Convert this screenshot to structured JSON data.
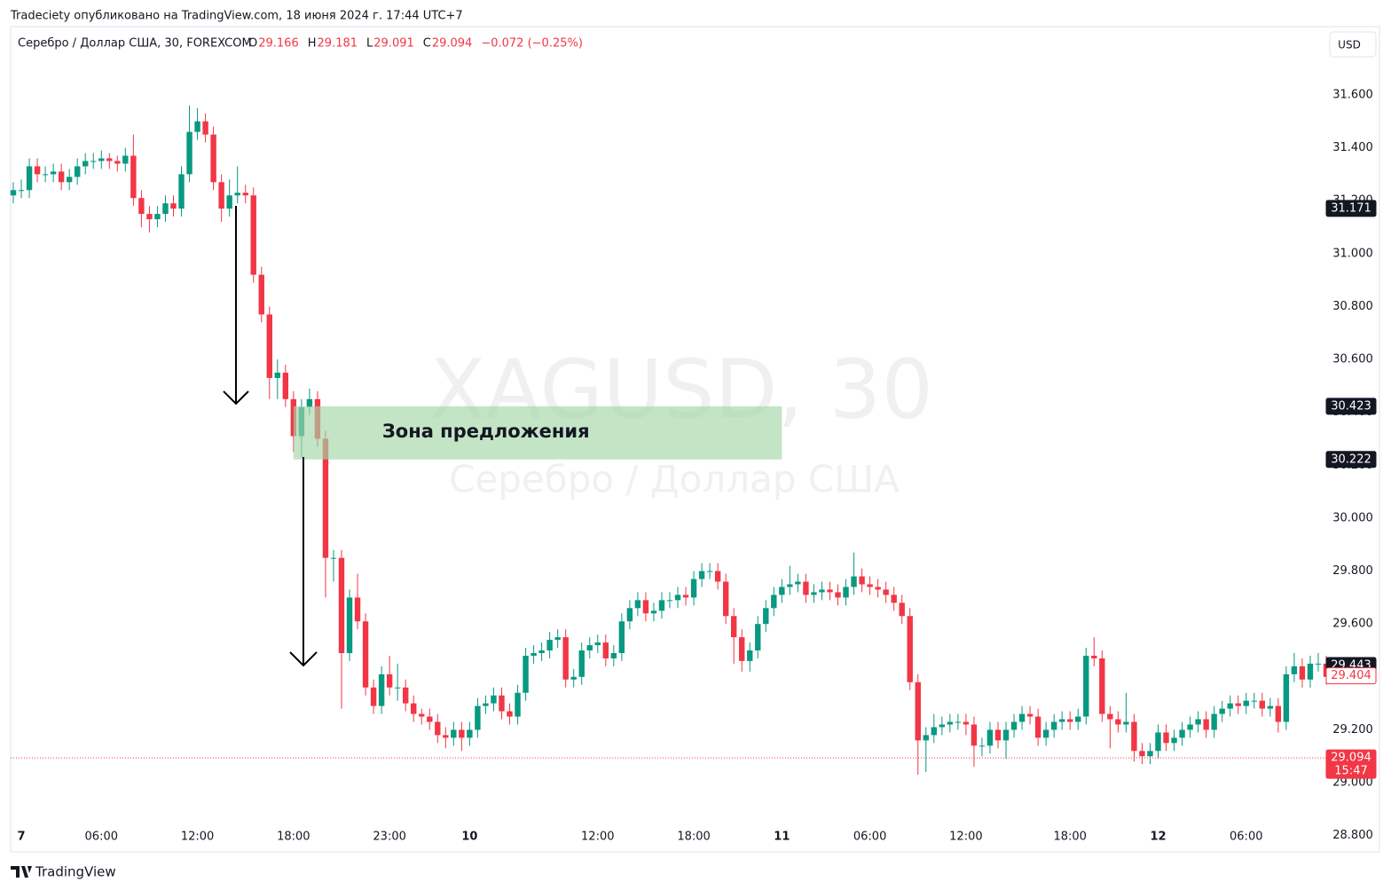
{
  "header": {
    "title": "Tradeciety опубликовано на TradingView.com, 18 июня 2024 г. 17:44 UTC+7",
    "symbol": "Серебро / Доллар США, 30, FOREXCOM",
    "ohlc": [
      {
        "label": "O",
        "value": 29.166
      },
      {
        "label": "H",
        "value": 29.181
      },
      {
        "label": "L",
        "value": 29.091
      },
      {
        "label": "C",
        "value": 29.094
      }
    ],
    "change": "−0.072 (−0.25%)",
    "currency": "USD",
    "brand": "TradingView"
  },
  "chart_data": {
    "type": "candlestick",
    "watermark": {
      "symbol": "XAGUSD, 30",
      "name": "Серебро / Доллар США"
    },
    "categories": [
      null,
      "7",
      null,
      null,
      null,
      null,
      null,
      null,
      null,
      null,
      null,
      "06:00",
      null,
      null,
      null,
      null,
      null,
      null,
      null,
      null,
      null,
      null,
      null,
      "12:00",
      null,
      null,
      null,
      null,
      null,
      null,
      null,
      null,
      null,
      null,
      null,
      "18:00",
      null,
      null,
      null,
      null,
      null,
      null,
      null,
      null,
      null,
      null,
      null,
      "23:00",
      null,
      null,
      null,
      null,
      null,
      null,
      null,
      null,
      null,
      "10",
      null,
      null,
      null,
      null,
      null,
      null,
      null,
      null,
      null,
      null,
      null,
      null,
      null,
      null,
      null,
      "12:00",
      null,
      null,
      null,
      null,
      null,
      null,
      null,
      null,
      null,
      null,
      null,
      "18:00",
      null,
      null,
      null,
      null,
      null,
      null,
      null,
      null,
      null,
      null,
      "11",
      null,
      null,
      null,
      null,
      null,
      null,
      null,
      null,
      null,
      null,
      "06:00",
      null,
      null,
      null,
      null,
      null,
      null,
      null,
      null,
      null,
      null,
      null,
      "12:00",
      null,
      null,
      null,
      null,
      null,
      null,
      null,
      null,
      null,
      null,
      null,
      null,
      "18:00",
      null,
      null,
      null,
      null,
      null,
      null,
      null,
      null,
      null,
      null,
      "12",
      null,
      null,
      null,
      null,
      null,
      null,
      null,
      null,
      null,
      null,
      "06:00",
      null,
      null,
      null,
      null,
      null,
      null,
      null,
      null,
      null,
      null
    ],
    "series": [
      {
        "up_color": "#089981",
        "down_color": "#f23645",
        "open": [
          31.22,
          31.24,
          31.24,
          31.33,
          31.3,
          31.3,
          31.31,
          31.27,
          31.29,
          31.33,
          31.35,
          31.35,
          31.36,
          31.35,
          31.34,
          31.37,
          31.21,
          31.15,
          31.13,
          31.15,
          31.19,
          31.17,
          31.3,
          31.46,
          31.5,
          31.45,
          31.27,
          31.17,
          31.22,
          31.23,
          31.22,
          30.92,
          30.77,
          30.53,
          30.55,
          30.45,
          30.31,
          30.42,
          30.45,
          30.3,
          29.85,
          29.85,
          29.49,
          29.7,
          29.61,
          29.36,
          29.29,
          29.41,
          29.36,
          29.36,
          29.3,
          29.26,
          29.25,
          29.23,
          29.18,
          29.17,
          29.2,
          29.17,
          29.2,
          29.29,
          29.3,
          29.33,
          29.27,
          29.25,
          29.34,
          29.48,
          29.49,
          29.5,
          29.54,
          29.55,
          29.39,
          29.4,
          29.5,
          29.52,
          29.53,
          29.47,
          29.49,
          29.61,
          29.66,
          29.69,
          29.64,
          29.65,
          29.69,
          29.69,
          29.71,
          29.7,
          29.77,
          29.8,
          29.8,
          29.76,
          29.63,
          29.55,
          29.46,
          29.5,
          29.6,
          29.66,
          29.71,
          29.74,
          29.75,
          29.76,
          29.71,
          29.72,
          29.73,
          29.72,
          29.7,
          29.74,
          29.78,
          29.75,
          29.74,
          29.73,
          29.71,
          29.68,
          29.63,
          29.38,
          29.16,
          29.18,
          29.21,
          29.22,
          29.23,
          29.23,
          29.22,
          29.14,
          29.14,
          29.2,
          29.16,
          29.2,
          29.23,
          29.26,
          29.25,
          29.17,
          29.2,
          29.23,
          29.24,
          29.23,
          29.25,
          29.48,
          29.47,
          29.26,
          29.24,
          29.22,
          29.23,
          29.12,
          29.1,
          29.12,
          29.19,
          29.15,
          29.17,
          29.2,
          29.22,
          29.24,
          29.2,
          29.26,
          29.28,
          29.3,
          29.29,
          29.31,
          29.31,
          29.28,
          29.29,
          29.23,
          29.41,
          29.44,
          29.39,
          29.45,
          29.45
        ],
        "high": [
          31.27,
          31.28,
          31.36,
          31.36,
          31.33,
          31.34,
          31.34,
          31.32,
          31.36,
          31.38,
          31.38,
          31.39,
          31.38,
          31.37,
          31.4,
          31.45,
          31.24,
          31.18,
          31.18,
          31.22,
          31.22,
          31.33,
          31.56,
          31.55,
          31.53,
          31.48,
          31.3,
          31.28,
          31.33,
          31.26,
          31.25,
          30.95,
          30.8,
          30.6,
          30.58,
          30.48,
          30.45,
          30.49,
          30.48,
          30.33,
          29.88,
          29.88,
          29.73,
          29.79,
          29.64,
          29.39,
          29.44,
          29.48,
          29.45,
          29.39,
          29.33,
          29.28,
          29.28,
          29.26,
          29.21,
          29.23,
          29.23,
          29.23,
          29.32,
          29.33,
          29.36,
          29.36,
          29.3,
          29.37,
          29.51,
          29.52,
          29.53,
          29.57,
          29.58,
          29.58,
          29.43,
          29.53,
          29.55,
          29.56,
          29.56,
          29.52,
          29.64,
          29.69,
          29.72,
          29.72,
          29.68,
          29.72,
          29.72,
          29.74,
          29.74,
          29.8,
          29.83,
          29.83,
          29.83,
          29.79,
          29.66,
          29.58,
          29.53,
          29.63,
          29.69,
          29.74,
          29.77,
          29.82,
          29.79,
          29.79,
          29.75,
          29.76,
          29.76,
          29.75,
          29.77,
          29.87,
          29.81,
          29.78,
          29.77,
          29.76,
          29.74,
          29.71,
          29.66,
          29.41,
          29.21,
          29.26,
          29.25,
          29.26,
          29.26,
          29.26,
          29.25,
          29.17,
          29.23,
          29.23,
          29.23,
          29.26,
          29.29,
          29.29,
          29.28,
          29.23,
          29.26,
          29.27,
          29.27,
          29.28,
          29.51,
          29.55,
          29.5,
          29.29,
          29.27,
          29.34,
          29.26,
          29.15,
          29.15,
          29.22,
          29.22,
          29.2,
          29.23,
          29.25,
          29.27,
          29.27,
          29.29,
          29.31,
          29.33,
          29.33,
          29.34,
          29.34,
          29.34,
          29.32,
          29.32,
          29.44,
          29.49,
          29.47,
          29.48,
          29.49,
          29.48
        ],
        "low": [
          31.19,
          31.21,
          31.21,
          31.27,
          31.27,
          31.27,
          31.24,
          31.24,
          31.26,
          31.3,
          31.32,
          31.32,
          31.32,
          31.31,
          31.31,
          31.18,
          31.1,
          31.08,
          31.1,
          31.12,
          31.14,
          31.14,
          31.27,
          31.43,
          31.42,
          31.24,
          31.12,
          31.14,
          31.19,
          31.19,
          30.89,
          30.74,
          30.45,
          30.45,
          30.42,
          30.25,
          30.23,
          30.39,
          30.27,
          29.7,
          29.76,
          29.28,
          29.46,
          29.58,
          29.33,
          29.26,
          29.26,
          29.33,
          29.31,
          29.27,
          29.23,
          29.22,
          29.2,
          29.15,
          29.13,
          29.14,
          29.12,
          29.14,
          29.17,
          29.26,
          29.27,
          29.24,
          29.22,
          29.22,
          29.31,
          29.45,
          29.46,
          29.47,
          29.51,
          29.36,
          29.36,
          29.37,
          29.47,
          29.49,
          29.44,
          29.44,
          29.46,
          29.58,
          29.63,
          29.61,
          29.61,
          29.62,
          29.66,
          29.66,
          29.67,
          29.67,
          29.74,
          29.77,
          29.73,
          29.6,
          29.45,
          29.42,
          29.42,
          29.47,
          29.57,
          29.63,
          29.68,
          29.71,
          29.72,
          29.68,
          29.68,
          29.69,
          29.69,
          29.67,
          29.67,
          29.71,
          29.72,
          29.71,
          29.7,
          29.68,
          29.65,
          29.6,
          29.35,
          29.03,
          29.04,
          29.15,
          29.18,
          29.19,
          29.2,
          29.18,
          29.06,
          29.1,
          29.11,
          29.13,
          29.09,
          29.17,
          29.2,
          29.22,
          29.14,
          29.14,
          29.17,
          29.2,
          29.2,
          29.2,
          29.22,
          29.44,
          29.23,
          29.13,
          29.19,
          29.19,
          29.08,
          29.07,
          29.07,
          29.09,
          29.12,
          29.12,
          29.14,
          29.17,
          29.19,
          29.17,
          29.17,
          29.23,
          29.25,
          29.26,
          29.26,
          29.28,
          29.25,
          29.25,
          29.19,
          29.2,
          29.38,
          29.36,
          29.36,
          29.42,
          29.37
        ],
        "close": [
          31.24,
          31.24,
          31.33,
          31.3,
          31.3,
          31.31,
          31.27,
          31.29,
          31.33,
          31.35,
          31.35,
          31.36,
          31.35,
          31.34,
          31.37,
          31.21,
          31.15,
          31.13,
          31.15,
          31.19,
          31.17,
          31.3,
          31.46,
          31.5,
          31.45,
          31.27,
          31.17,
          31.22,
          31.23,
          31.22,
          30.92,
          30.77,
          30.53,
          30.55,
          30.45,
          30.31,
          30.42,
          30.45,
          30.3,
          29.85,
          29.85,
          29.49,
          29.7,
          29.61,
          29.36,
          29.29,
          29.41,
          29.36,
          29.36,
          29.3,
          29.26,
          29.25,
          29.23,
          29.18,
          29.17,
          29.2,
          29.17,
          29.2,
          29.29,
          29.3,
          29.33,
          29.27,
          29.25,
          29.34,
          29.48,
          29.49,
          29.5,
          29.54,
          29.55,
          29.39,
          29.4,
          29.5,
          29.52,
          29.53,
          29.47,
          29.49,
          29.61,
          29.66,
          29.69,
          29.64,
          29.65,
          29.69,
          29.69,
          29.71,
          29.7,
          29.77,
          29.8,
          29.8,
          29.76,
          29.63,
          29.55,
          29.46,
          29.5,
          29.6,
          29.66,
          29.71,
          29.74,
          29.75,
          29.76,
          29.71,
          29.72,
          29.73,
          29.72,
          29.7,
          29.74,
          29.78,
          29.75,
          29.74,
          29.73,
          29.71,
          29.68,
          29.63,
          29.38,
          29.16,
          29.18,
          29.21,
          29.22,
          29.23,
          29.23,
          29.22,
          29.14,
          29.14,
          29.2,
          29.16,
          29.2,
          29.23,
          29.26,
          29.25,
          29.17,
          29.2,
          29.23,
          29.24,
          29.23,
          29.25,
          29.48,
          29.47,
          29.26,
          29.24,
          29.22,
          29.23,
          29.12,
          29.1,
          29.12,
          29.19,
          29.15,
          29.17,
          29.2,
          29.22,
          29.24,
          29.2,
          29.26,
          29.28,
          29.3,
          29.29,
          29.31,
          29.31,
          29.28,
          29.29,
          29.23,
          29.41,
          29.44,
          29.39,
          29.45,
          29.45,
          29.4
        ]
      }
    ],
    "ylim": [
      28.789,
      31.858
    ],
    "yticks": [
      {
        "value": 31.6,
        "label": "31.600"
      },
      {
        "value": 31.4,
        "label": "31.400"
      },
      {
        "value": 31.2,
        "label": "31.200"
      },
      {
        "value": 31.0,
        "label": "31.000"
      },
      {
        "value": 30.8,
        "label": "30.800"
      },
      {
        "value": 30.6,
        "label": "30.600"
      },
      {
        "value": 30.4,
        "label": "30.400"
      },
      {
        "value": 30.2,
        "label": "30.200"
      },
      {
        "value": 30.0,
        "label": "30.000"
      },
      {
        "value": 29.8,
        "label": "29.800"
      },
      {
        "value": 29.6,
        "label": "29.600"
      },
      {
        "value": 29.4,
        "label": "29.400"
      },
      {
        "value": 29.2,
        "label": "29.200"
      },
      {
        "value": 29.0,
        "label": "29.000"
      },
      {
        "value": 28.8,
        "label": "28.800"
      }
    ],
    "grid": false,
    "zone": {
      "label": "Зона предложения",
      "high": 30.423,
      "low": 30.222,
      "start_index": 35,
      "end_index": 96,
      "color": "#a5d6a7"
    },
    "price_labels": [
      {
        "value": 31.171,
        "background": "#131722",
        "text_color": "#ffffff"
      },
      {
        "value": 30.423,
        "background": "#131722",
        "text_color": "#ffffff"
      },
      {
        "value": 30.222,
        "background": "#131722",
        "text_color": "#ffffff"
      },
      {
        "value": 29.443,
        "background": "#131722",
        "text_color": "#ffffff"
      },
      {
        "value": 29.404,
        "background": "#ffffff",
        "text_color": "#f23645",
        "border": "#f23645"
      },
      {
        "value": 29.094,
        "background": "#f23645",
        "text_color": "#ffffff",
        "countdown": "15:47",
        "line": true
      }
    ]
  }
}
